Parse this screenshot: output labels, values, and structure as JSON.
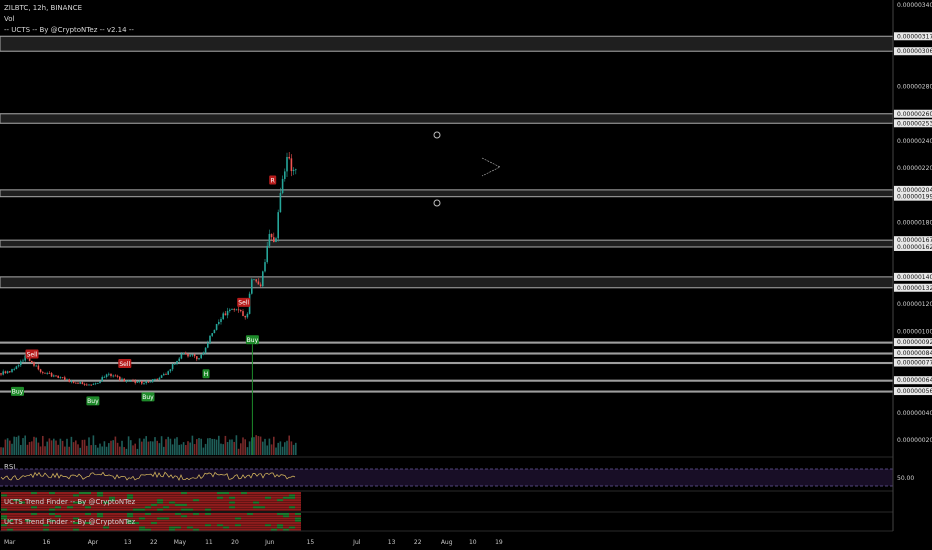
{
  "header": {
    "symbol_line": "ZILBTC, 12h, BINANCE",
    "vol_label": "Vol",
    "indicator_line": "-- UCTS -- By @CryptoNTez -- v2.14 --"
  },
  "panes": {
    "rsi_label": "RSI",
    "rsi_level": "50.00",
    "trend1_label": "UCTS Trend Finder -- By @CryptoNTez",
    "trend2_label": "UCTS Trend Finder -- By @CryptoNTez"
  },
  "colors": {
    "background": "#000000",
    "up": "#26a69a",
    "down": "#ef5350",
    "buy": "#1e8a2a",
    "sell": "#b71c1c",
    "zone": "#9e9e9e",
    "rsi": "#e0c060"
  },
  "chart_data": {
    "type": "candlestick",
    "symbol": "ZILBTC",
    "interval": "12h",
    "exchange": "BINANCE",
    "price_ticks": [
      "0.00000340",
      "0.00000317",
      "0.00000306",
      "0.00000280",
      "0.00000260",
      "0.00000253",
      "0.00000240",
      "0.00000220",
      "0.00000204",
      "0.00000199",
      "0.00000180",
      "0.00000167",
      "0.00000162",
      "0.00000140",
      "0.00000132",
      "0.00000120",
      "0.00000100",
      "0.00000092",
      "0.00000084",
      "0.00000077",
      "0.00000064",
      "0.00000056",
      "0.00000040",
      "0.00000020"
    ],
    "time_ticks": [
      "Mar",
      "16",
      "Apr",
      "13",
      "22",
      "May",
      "11",
      "20",
      "Jun",
      "15",
      "Jul",
      "13",
      "22",
      "Aug",
      "10",
      "19"
    ],
    "zones": [
      {
        "low": 3.06e-06,
        "high": 3.17e-06
      },
      {
        "low": 2.53e-06,
        "high": 2.6e-06
      },
      {
        "low": 1.99e-06,
        "high": 2.04e-06
      },
      {
        "low": 1.62e-06,
        "high": 1.67e-06
      },
      {
        "low": 1.32e-06,
        "high": 1.4e-06
      },
      {
        "low": 9.2e-07,
        "high": 9.2e-07
      },
      {
        "low": 8.4e-07,
        "high": 8.4e-07
      },
      {
        "low": 7.7e-07,
        "high": 7.7e-07
      },
      {
        "low": 6.4e-07,
        "high": 6.4e-07
      },
      {
        "low": 5.6e-07,
        "high": 5.6e-07
      }
    ],
    "signals": [
      {
        "label": "Buy",
        "type": "buy",
        "date": "Mar 6",
        "price": 6.2e-07
      },
      {
        "label": "Sell",
        "type": "sell",
        "date": "Mar 11",
        "price": 7.7e-07
      },
      {
        "label": "Buy",
        "type": "buy",
        "date": "Apr 1",
        "price": 5.5e-07
      },
      {
        "label": "Sell",
        "type": "sell",
        "date": "Apr 12",
        "price": 7e-07
      },
      {
        "label": "Buy",
        "type": "buy",
        "date": "Apr 20",
        "price": 5.8e-07
      },
      {
        "label": "Sell",
        "type": "sell",
        "date": "May 23",
        "price": 1.15e-06
      },
      {
        "label": "Buy",
        "type": "buy",
        "date": "May 26",
        "price": 1e-06
      },
      {
        "label": "H",
        "type": "buy",
        "date": "May 10",
        "price": 7.5e-07
      },
      {
        "label": "R",
        "type": "sell",
        "date": "Jun 2",
        "price": 2.05e-06
      }
    ],
    "close_path": [
      {
        "date": "Feb 26",
        "close": 6.8e-07
      },
      {
        "date": "Mar 5",
        "close": 7.2e-07
      },
      {
        "date": "Mar 9",
        "close": 8.2e-07
      },
      {
        "date": "Mar 14",
        "close": 7e-07
      },
      {
        "date": "Mar 20",
        "close": 6.6e-07
      },
      {
        "date": "Mar 26",
        "close": 6.2e-07
      },
      {
        "date": "Apr 2",
        "close": 6.1e-07
      },
      {
        "date": "Apr 6",
        "close": 6.9e-07
      },
      {
        "date": "Apr 12",
        "close": 6.3e-07
      },
      {
        "date": "Apr 20",
        "close": 6.2e-07
      },
      {
        "date": "Apr 26",
        "close": 6.8e-07
      },
      {
        "date": "May 2",
        "close": 8.4e-07
      },
      {
        "date": "May 8",
        "close": 8e-07
      },
      {
        "date": "May 12",
        "close": 9.8e-07
      },
      {
        "date": "May 16",
        "close": 1.12e-06
      },
      {
        "date": "May 20",
        "close": 1.18e-06
      },
      {
        "date": "May 24",
        "close": 1.1e-06
      },
      {
        "date": "May 26",
        "close": 1.4e-06
      },
      {
        "date": "May 29",
        "close": 1.35e-06
      },
      {
        "date": "Jun 1",
        "close": 1.75e-06
      },
      {
        "date": "Jun 3",
        "close": 1.65e-06
      },
      {
        "date": "Jun 5",
        "close": 2.1e-06
      },
      {
        "date": "Jun 7",
        "close": 2.25e-06
      },
      {
        "date": "Jun 10",
        "close": 2.18e-06
      }
    ],
    "rsi_level": 50
  }
}
